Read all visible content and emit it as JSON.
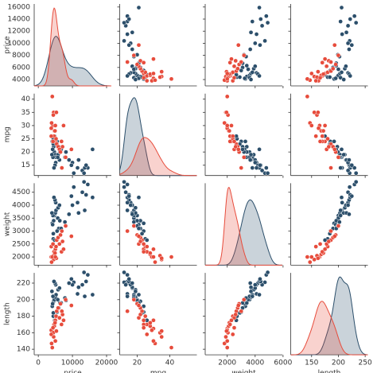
{
  "chart_data": {
    "type": "pairplot",
    "variables": [
      "price",
      "mpg",
      "weight",
      "length"
    ],
    "axes": {
      "price": {
        "xlim": [
          -1200,
          21400
        ],
        "xticks": [
          0,
          10000,
          20000
        ],
        "ylim": [
          2950,
          16500
        ],
        "yticks": [
          4000,
          6000,
          8000,
          10000,
          12000,
          14000,
          16000
        ]
      },
      "mpg": {
        "xlim": [
          9.3,
          56.6
        ],
        "xticks": [
          20,
          40
        ],
        "ylim": [
          11.1,
          42.1
        ],
        "yticks": [
          15,
          20,
          25,
          30,
          35,
          40
        ]
      },
      "weight": {
        "xlim": [
          420,
          5950
        ],
        "xticks": [
          2000,
          4000,
          6000
        ],
        "ylim": [
          1683,
          4848
        ],
        "yticks": [
          2000,
          2500,
          3000,
          3500,
          4000,
          4500
        ]
      },
      "length": {
        "xlim": [
          111,
          255
        ],
        "xticks": [
          150,
          200,
          250
        ],
        "ylim": [
          133.3,
          232.4
        ],
        "yticks": [
          140,
          160,
          180,
          200,
          220
        ]
      }
    },
    "groups": [
      {
        "color": "#2c4f6b",
        "price": [
          4100,
          4500,
          4700,
          5000,
          5200,
          4200,
          4400,
          4800,
          5800,
          6200,
          5100,
          4900,
          4600,
          5700,
          6000,
          5500,
          6300,
          4300,
          4000,
          4400,
          10400,
          11500,
          12900,
          14500,
          15900,
          13600,
          14000,
          11800,
          13400,
          10000,
          9700,
          9000,
          8100,
          7800,
          6700
        ],
        "mpg": [
          24,
          22,
          20,
          19,
          18,
          21,
          25,
          26,
          19,
          17,
          16,
          15,
          14,
          18,
          22,
          24,
          20,
          18,
          19,
          23,
          12,
          14,
          13,
          14,
          21,
          14,
          15,
          17,
          12,
          16,
          15,
          17,
          20,
          18,
          21
        ],
        "weight": [
          3300,
          3400,
          3600,
          3700,
          3800,
          3250,
          2700,
          2650,
          3900,
          4000,
          4100,
          4200,
          4300,
          3500,
          3100,
          3000,
          3400,
          3600,
          3700,
          2900,
          4700,
          4100,
          4500,
          4800,
          4300,
          3800,
          4400,
          3700,
          4900,
          4000,
          4350,
          3650,
          3200,
          3350,
          3100
        ],
        "length": [
          192,
          198,
          200,
          203,
          206,
          195,
          180,
          175,
          212,
          214,
          218,
          220,
          222,
          200,
          190,
          185,
          196,
          204,
          210,
          184,
          221,
          207,
          218,
          230,
          206,
          204,
          222,
          215,
          233,
          218,
          225,
          220,
          199,
          202,
          196
        ]
      },
      {
        "color": "#e74c3c",
        "price": [
          4200,
          4500,
          4600,
          4700,
          5000,
          5200,
          3800,
          3900,
          4400,
          5400,
          5800,
          6200,
          6500,
          7100,
          8000,
          9700,
          5300,
          4100,
          4900,
          6800,
          7400,
          3800,
          4300,
          5000,
          6900
        ],
        "mpg": [
          30,
          35,
          26,
          28,
          24,
          25,
          29,
          31,
          34,
          23,
          22,
          21,
          20,
          22,
          18,
          21,
          35,
          41,
          28,
          24,
          30,
          26,
          24,
          30,
          14
        ],
        "weight": [
          2000,
          1900,
          2200,
          2100,
          2300,
          2400,
          2000,
          1800,
          2050,
          2650,
          2750,
          2500,
          2850,
          2600,
          3200,
          2800,
          1950,
          2000,
          2150,
          2200,
          2300,
          2400,
          2500,
          2000,
          3000
        ],
        "length": [
          165,
          155,
          170,
          168,
          175,
          180,
          163,
          147,
          160,
          186,
          190,
          178,
          195,
          182,
          200,
          193,
          162,
          142,
          172,
          170,
          175,
          158,
          166,
          150,
          186
        ]
      }
    ]
  }
}
